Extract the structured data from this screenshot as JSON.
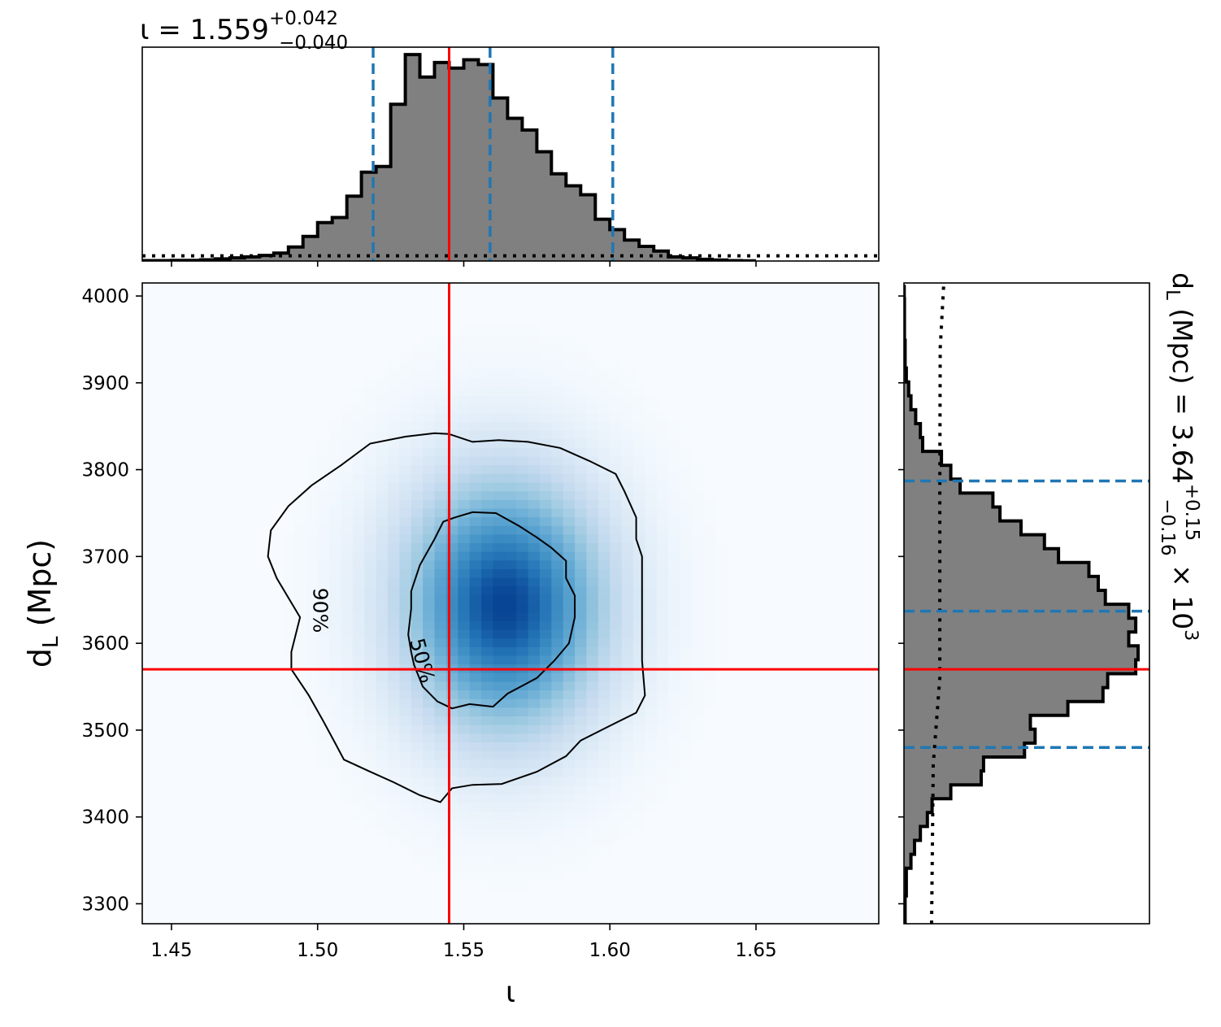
{
  "figure": {
    "top_title": {
      "base": "ι = 1.559",
      "sup": "+0.042",
      "sub": "−0.040"
    },
    "right_title": {
      "pre": "d",
      "pre_sub": "L",
      "mid": " (Mpc) = 3.64",
      "sup": "+0.15",
      "sub": "−0.16",
      "post": " × 10",
      "post_sup": "3"
    },
    "xlabel": "ι",
    "ylabel": {
      "main": "d",
      "sub": "L",
      "rest": " (Mpc)"
    },
    "contour_labels": [
      "90%",
      "50%"
    ]
  },
  "colors": {
    "hist_fill": "#808080",
    "hist_edge": "#000000",
    "quantile_lines": "#1f77b4",
    "truth": "#ff0000",
    "density_low": "#f7fbff",
    "density_high": "#08306b"
  },
  "chart_data": [
    {
      "panel": "iota-marginal",
      "type": "bar",
      "xlim": [
        1.44,
        1.692
      ],
      "bin_edges_start": 1.44,
      "bin_width": 0.005,
      "values": [
        0.002,
        0.002,
        0.003,
        0.003,
        0.006,
        0.01,
        0.015,
        0.02,
        0.027,
        0.038,
        0.067,
        0.118,
        0.184,
        0.208,
        0.31,
        0.425,
        0.452,
        0.75,
        0.988,
        0.88,
        0.95,
        0.923,
        0.963,
        0.94,
        0.78,
        0.683,
        0.627,
        0.523,
        0.417,
        0.36,
        0.317,
        0.2,
        0.15,
        0.1,
        0.07,
        0.048,
        0.02,
        0.015,
        0.008,
        0.005,
        0.002,
        0.001
      ],
      "quantiles": [
        1.519,
        1.559,
        1.601
      ],
      "truth": 1.545,
      "prior_level": 0.025,
      "grid": false
    },
    {
      "panel": "joint-density",
      "type": "heatmap",
      "xlabel": "ι",
      "ylabel": "d_L (Mpc)",
      "xlim": [
        1.44,
        1.692
      ],
      "ylim": [
        3277,
        4015
      ],
      "x_ticks": [
        "1.45",
        "1.50",
        "1.55",
        "1.60",
        "1.65"
      ],
      "y_ticks": [
        "3300",
        "3400",
        "3500",
        "3600",
        "3700",
        "3800",
        "3900",
        "4000"
      ],
      "density_peaks": [
        {
          "x": 1.572,
          "y": 3650,
          "weight": 1.0
        },
        {
          "x": 1.556,
          "y": 3672,
          "weight": 0.78
        },
        {
          "x": 1.561,
          "y": 3608,
          "weight": 0.72
        }
      ],
      "contour_90": [
        [
          1.545,
          3841
        ],
        [
          1.553,
          3832
        ],
        [
          1.562,
          3834
        ],
        [
          1.572,
          3832
        ],
        [
          1.583,
          3825
        ],
        [
          1.593,
          3810
        ],
        [
          1.602,
          3795
        ],
        [
          1.605,
          3775
        ],
        [
          1.609,
          3745
        ],
        [
          1.609,
          3720
        ],
        [
          1.611,
          3700
        ],
        [
          1.611,
          3660
        ],
        [
          1.611,
          3620
        ],
        [
          1.611,
          3580
        ],
        [
          1.612,
          3540
        ],
        [
          1.609,
          3520
        ],
        [
          1.6,
          3505
        ],
        [
          1.59,
          3488
        ],
        [
          1.585,
          3470
        ],
        [
          1.575,
          3452
        ],
        [
          1.563,
          3438
        ],
        [
          1.553,
          3437
        ],
        [
          1.546,
          3433
        ],
        [
          1.542,
          3417
        ],
        [
          1.535,
          3425
        ],
        [
          1.526,
          3440
        ],
        [
          1.518,
          3452
        ],
        [
          1.509,
          3466
        ],
        [
          1.506,
          3485
        ],
        [
          1.502,
          3510
        ],
        [
          1.497,
          3540
        ],
        [
          1.491,
          3570
        ],
        [
          1.491,
          3590
        ],
        [
          1.494,
          3630
        ],
        [
          1.486,
          3675
        ],
        [
          1.483,
          3700
        ],
        [
          1.484,
          3730
        ],
        [
          1.49,
          3758
        ],
        [
          1.498,
          3782
        ],
        [
          1.508,
          3805
        ],
        [
          1.518,
          3830
        ],
        [
          1.53,
          3838
        ],
        [
          1.54,
          3842
        ],
        [
          1.545,
          3841
        ]
      ],
      "contour_50": [
        [
          1.547,
          3745
        ],
        [
          1.553,
          3751
        ],
        [
          1.561,
          3750
        ],
        [
          1.569,
          3735
        ],
        [
          1.575,
          3722
        ],
        [
          1.58,
          3710
        ],
        [
          1.585,
          3695
        ],
        [
          1.585,
          3675
        ],
        [
          1.588,
          3655
        ],
        [
          1.588,
          3630
        ],
        [
          1.586,
          3600
        ],
        [
          1.581,
          3580
        ],
        [
          1.575,
          3560
        ],
        [
          1.565,
          3542
        ],
        [
          1.56,
          3527
        ],
        [
          1.552,
          3530
        ],
        [
          1.546,
          3525
        ],
        [
          1.541,
          3533
        ],
        [
          1.536,
          3550
        ],
        [
          1.533,
          3575
        ],
        [
          1.532,
          3590
        ],
        [
          1.531,
          3610
        ],
        [
          1.532,
          3640
        ],
        [
          1.532,
          3660
        ],
        [
          1.535,
          3690
        ],
        [
          1.54,
          3720
        ],
        [
          1.543,
          3740
        ],
        [
          1.547,
          3745
        ]
      ],
      "truth_x": 1.545,
      "truth_y": 3570,
      "grid": false
    },
    {
      "panel": "dL-marginal",
      "type": "bar",
      "orientation": "horizontal",
      "ylim": [
        3277,
        4015
      ],
      "bin_edges_start": 3277,
      "bin_width": 16,
      "values": [
        0.005,
        0.005,
        0.01,
        0.01,
        0.03,
        0.045,
        0.07,
        0.1,
        0.12,
        0.2,
        0.33,
        0.34,
        0.515,
        0.56,
        0.54,
        0.7,
        0.85,
        0.87,
        0.99,
        1.0,
        0.96,
        0.99,
        0.96,
        0.86,
        0.83,
        0.79,
        0.66,
        0.6,
        0.5,
        0.41,
        0.38,
        0.24,
        0.2,
        0.16,
        0.08,
        0.07,
        0.05,
        0.03,
        0.02,
        0.01,
        0.005,
        0.005,
        0.002,
        0.002,
        0.002,
        0.001
      ],
      "quantiles": [
        3480,
        3637,
        3787
      ],
      "truth": 3570,
      "prior_curve": [
        [
          3277,
          0.118
        ],
        [
          3460,
          0.125
        ],
        [
          3560,
          0.153
        ],
        [
          3700,
          0.153
        ],
        [
          3780,
          0.153
        ],
        [
          3940,
          0.155
        ],
        [
          4015,
          0.17
        ]
      ],
      "grid": false
    }
  ]
}
